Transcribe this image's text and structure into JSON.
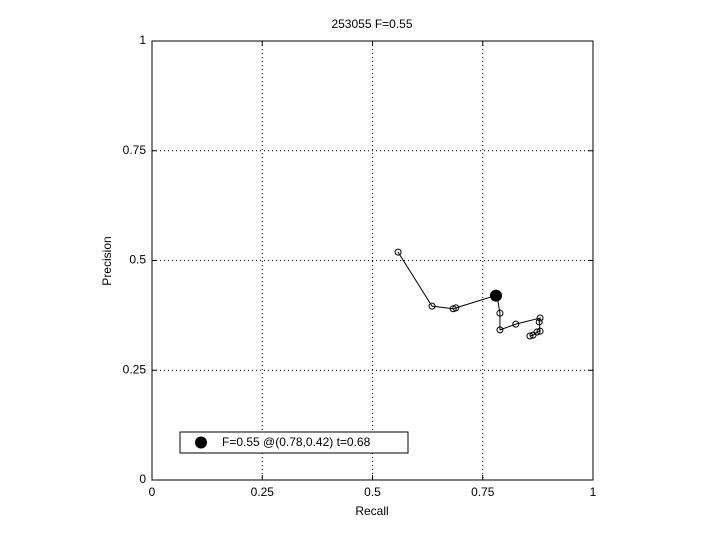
{
  "chart_data": {
    "type": "line",
    "title": "253055 F=0.55",
    "x_label": "Recall",
    "y_label": "Precision",
    "series": [
      {
        "color": "#000000",
        "x": [
          0.558,
          0.635,
          0.683,
          0.689,
          0.782,
          0.789,
          0.789,
          0.825,
          0.88,
          0.878,
          0.88,
          0.873,
          0.864,
          0.857
        ],
        "values": [
          0.519,
          0.396,
          0.39,
          0.392,
          0.421,
          0.38,
          0.342,
          0.355,
          0.369,
          0.36,
          0.339,
          0.337,
          0.33,
          0.328
        ]
      }
    ],
    "best": {
      "x": 0.78,
      "y": 0.42
    },
    "legend": {
      "label": "F=0.55 @(0.78,0.42) t=0.68",
      "position": "lower left"
    },
    "xlim": [
      0,
      1
    ],
    "ylim": [
      0,
      1
    ],
    "xticks": [
      0,
      0.25,
      0.5,
      0.75,
      1
    ],
    "yticks": [
      0,
      0.25,
      0.5,
      0.75,
      1
    ],
    "grid": true
  }
}
